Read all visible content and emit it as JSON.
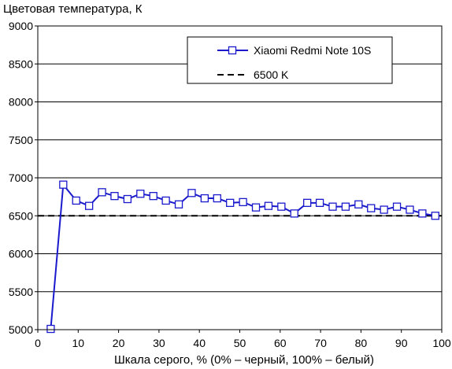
{
  "chart_data": {
    "type": "line",
    "ylabel": "Цветовая температура, К",
    "xlabel": "Шкала серого, % (0% – черный, 100% – белый)",
    "xlim": [
      0,
      100
    ],
    "ylim": [
      5000,
      9000
    ],
    "xticks": [
      0,
      10,
      20,
      30,
      40,
      50,
      60,
      70,
      80,
      90,
      100
    ],
    "yticks": [
      5000,
      5500,
      6000,
      6500,
      7000,
      7500,
      8000,
      8500,
      9000
    ],
    "grid": "horizontal",
    "legend_position": "top-right",
    "series": [
      {
        "name": "Xiaomi Redmi Note 10S",
        "color": "#1a1acc",
        "marker": "square-open",
        "x": [
          3.2,
          6.3,
          9.5,
          12.7,
          15.9,
          19.0,
          22.2,
          25.4,
          28.6,
          31.7,
          34.9,
          38.1,
          41.3,
          44.4,
          47.6,
          50.8,
          54.0,
          57.1,
          60.3,
          63.5,
          66.7,
          69.8,
          73.0,
          76.2,
          79.4,
          82.5,
          85.7,
          88.9,
          92.1,
          95.2,
          98.4
        ],
        "y": [
          5010,
          6910,
          6700,
          6630,
          6810,
          6760,
          6720,
          6790,
          6760,
          6700,
          6650,
          6800,
          6730,
          6730,
          6670,
          6680,
          6610,
          6630,
          6620,
          6530,
          6670,
          6670,
          6620,
          6620,
          6650,
          6600,
          6580,
          6620,
          6580,
          6530,
          6500
        ]
      },
      {
        "name": "6500 K",
        "color": "#000000",
        "style": "dashed",
        "x": [
          0,
          100
        ],
        "y": [
          6500,
          6500
        ]
      }
    ]
  }
}
